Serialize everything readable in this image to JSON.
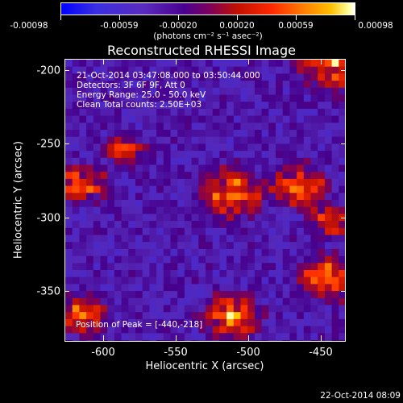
{
  "colorbar": {
    "tick_labels": [
      "-0.00098",
      "-0.00059",
      "-0.00020",
      "0.00020",
      "0.00059",
      "0.00098"
    ],
    "units": "(photons cm⁻² s⁻¹ asec⁻²)"
  },
  "title": "Reconstructed RHESSI Image",
  "info": {
    "time_range": "21-Oct-2014 03:47:08.000 to 03:50:44.000",
    "detectors": "Detectors: 3F 6F 9F, Att 0",
    "energy": "Energy Range: 25.0 - 50.0 keV",
    "method": "Clean     Total counts: 2.50E+03"
  },
  "peak": "Position of Peak = [-440,-218]",
  "axes": {
    "xlabel": "Heliocentric X (arcsec)",
    "ylabel": "Heliocentric Y (arcsec)",
    "xticks": [
      "-600",
      "-550",
      "-500",
      "-450"
    ],
    "yticks": [
      "-200",
      "-250",
      "-300",
      "-350"
    ]
  },
  "footer_date": "22-Oct-2014 08:09",
  "colors": {
    "background": "#000000",
    "foreground": "#ffffff"
  }
}
